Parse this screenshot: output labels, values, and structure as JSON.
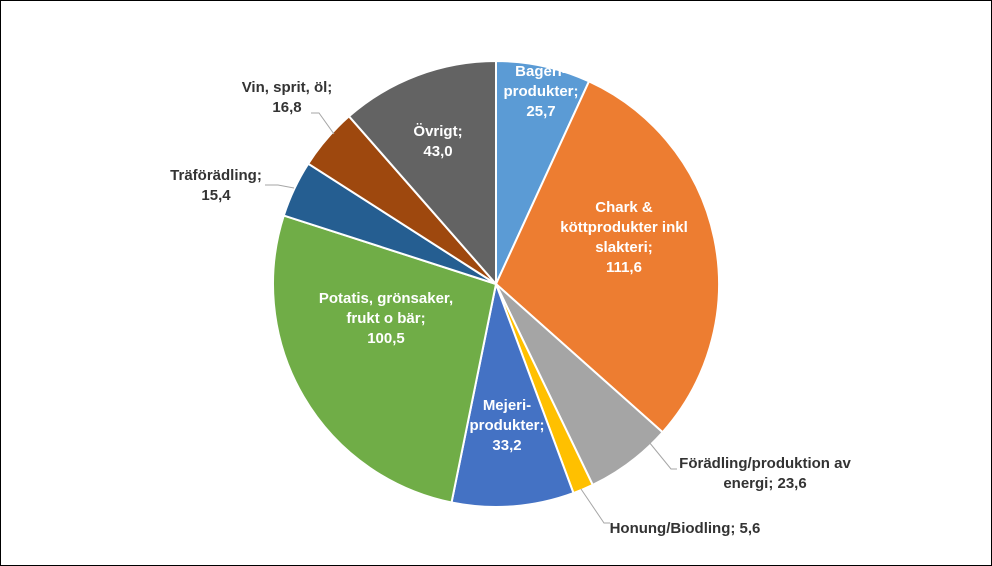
{
  "chart_data": {
    "type": "pie",
    "title": "",
    "series": [
      {
        "name": "Bageri-produkter",
        "label_lines": [
          "Bageri-",
          "produkter;",
          "25,7"
        ],
        "value": 25.7,
        "color": "#5B9BD5",
        "label_inside": true
      },
      {
        "name": "Chark & köttprodukter inkl slakteri",
        "label_lines": [
          "Chark &",
          "köttprodukter inkl",
          "slakteri;",
          "111,6"
        ],
        "value": 111.6,
        "color": "#ED7D31",
        "label_inside": true
      },
      {
        "name": "Förädling/produktion av energi",
        "label_lines": [
          "Förädling/produktion av",
          "energi; 23,6"
        ],
        "value": 23.6,
        "color": "#A5A5A5",
        "label_inside": false
      },
      {
        "name": "Honung/Biodling",
        "label_lines": [
          "Honung/Biodling; 5,6"
        ],
        "value": 5.6,
        "color": "#FFC000",
        "label_inside": false
      },
      {
        "name": "Mejeri-produkter",
        "label_lines": [
          "Mejeri-",
          "produkter;",
          "33,2"
        ],
        "value": 33.2,
        "color": "#4472C4",
        "label_inside": true
      },
      {
        "name": "Potatis, grönsaker, frukt o bär",
        "label_lines": [
          "Potatis, grönsaker,",
          "frukt o bär;",
          "100,5"
        ],
        "value": 100.5,
        "color": "#70AD47",
        "label_inside": true
      },
      {
        "name": "Träförädling",
        "label_lines": [
          "Träförädling;",
          "15,4"
        ],
        "value": 15.4,
        "color": "#255E91",
        "label_inside": false
      },
      {
        "name": "Vin, sprit, öl",
        "label_lines": [
          "Vin, sprit, öl;",
          "16,8"
        ],
        "value": 16.8,
        "color": "#9E480E",
        "label_inside": false
      },
      {
        "name": "Övrigt",
        "label_lines": [
          "Övrigt;",
          "43,0"
        ],
        "value": 43.0,
        "color": "#636363",
        "label_inside": true
      }
    ],
    "legend": "none",
    "start_angle": "12 o'clock",
    "direction": "clockwise"
  }
}
